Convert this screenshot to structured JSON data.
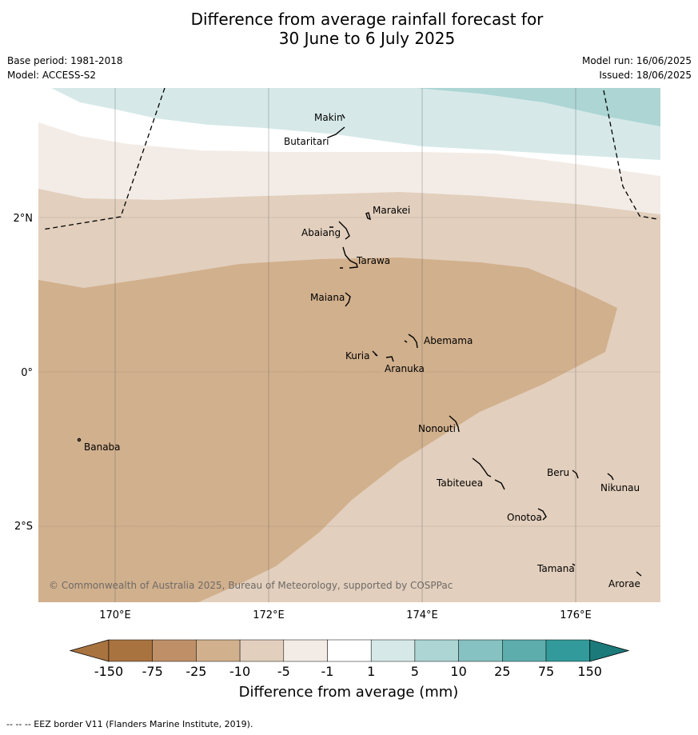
{
  "title": {
    "line1": "Difference from average rainfall forecast for",
    "line2": "30 June to 6 July 2025"
  },
  "meta": {
    "base_period": "Base period: 1981-2018",
    "model": "Model: ACCESS-S2",
    "model_run": "Model run: 16/06/2025",
    "issued": "Issued: 18/06/2025"
  },
  "map": {
    "lat_labels": [
      "2°N",
      "0°",
      "2°S"
    ],
    "lon_labels": [
      "170°E",
      "172°E",
      "174°E",
      "176°E"
    ],
    "places": [
      "Makin",
      "Butaritari",
      "Marakei",
      "Abaiang",
      "Tarawa",
      "Maiana",
      "Abemama",
      "Kuria",
      "Aranuka",
      "Nonouti",
      "Banaba",
      "Beru",
      "Nikunau",
      "Tabiteuea",
      "Onotoa",
      "Tamana",
      "Arorae"
    ],
    "copyright": "© Commonwealth of Australia 2025, Bureau of Meteorology, supported by COSPPac"
  },
  "legend": {
    "ticks": [
      "-150",
      "-75",
      "-25",
      "-10",
      "-5",
      "-1",
      "1",
      "5",
      "10",
      "25",
      "75",
      "150"
    ],
    "colors": [
      "#a97340",
      "#bf9068",
      "#d1b08d",
      "#e2cfbd",
      "#f3ece6",
      "#ffffff",
      "#d6e9e8",
      "#acd5d4",
      "#85c2c1",
      "#5dadad",
      "#329a9a",
      "#1c7a7a"
    ],
    "title": "Difference from average (mm)"
  },
  "footer": "--  --  -- EEZ border V11 (Flanders Marine Institute, 2019)."
}
